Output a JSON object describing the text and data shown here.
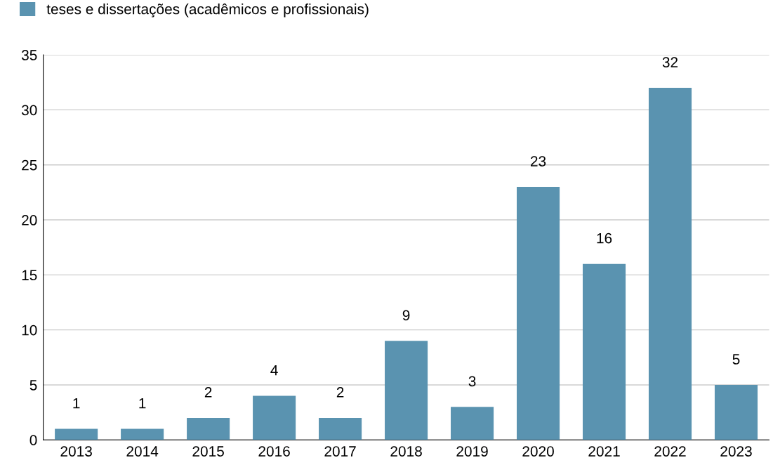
{
  "chart_data": {
    "type": "bar",
    "categories": [
      "2013",
      "2014",
      "2015",
      "2016",
      "2017",
      "2018",
      "2019",
      "2020",
      "2021",
      "2022",
      "2023"
    ],
    "series": [
      {
        "name": "teses e dissertações (acadêmicos e profissionais)",
        "color": "#5a93b0",
        "values": [
          1,
          1,
          2,
          4,
          2,
          9,
          3,
          23,
          16,
          32,
          5
        ]
      }
    ],
    "ylim": [
      0,
      35
    ],
    "yticks": [
      0,
      5,
      10,
      15,
      20,
      25,
      30,
      35
    ],
    "grid": "y",
    "legend": "top left",
    "data_labels": true
  }
}
